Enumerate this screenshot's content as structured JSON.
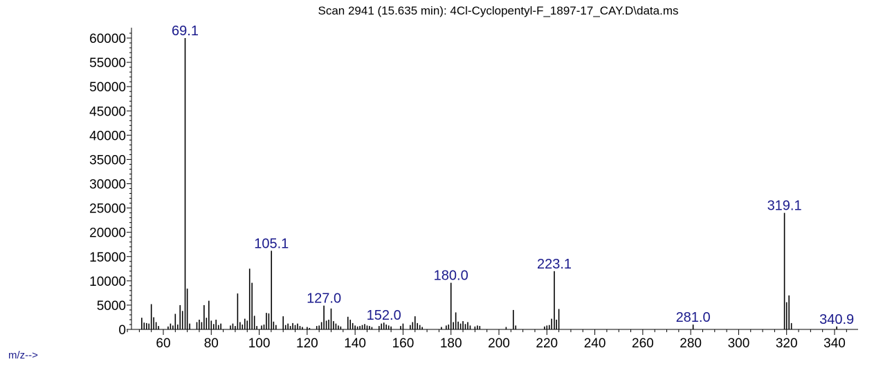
{
  "chart_data": {
    "type": "bar",
    "title": "Scan 2941 (15.635 min): 4Cl-Cyclopentyl-F_1897-17_CAY.D\\data.ms",
    "xlabel": "m/z-->",
    "ylabel": "",
    "xlim": [
      43,
      347
    ],
    "ylim": [
      0,
      62500
    ],
    "x_ticks": [
      60,
      80,
      100,
      120,
      140,
      160,
      180,
      200,
      220,
      240,
      260,
      280,
      300,
      320,
      340
    ],
    "y_ticks": [
      0,
      5000,
      10000,
      15000,
      20000,
      25000,
      30000,
      35000,
      40000,
      45000,
      50000,
      55000,
      60000
    ],
    "colors": {
      "bars": "#000000",
      "peak_labels": "#1a1a8c",
      "axes": "#000000"
    },
    "peaks": [
      {
        "mz": 51,
        "intensity": 2400
      },
      {
        "mz": 52,
        "intensity": 1400
      },
      {
        "mz": 53,
        "intensity": 1300
      },
      {
        "mz": 54,
        "intensity": 1200
      },
      {
        "mz": 55,
        "intensity": 5200
      },
      {
        "mz": 56,
        "intensity": 2500
      },
      {
        "mz": 57,
        "intensity": 1500
      },
      {
        "mz": 58,
        "intensity": 700
      },
      {
        "mz": 62,
        "intensity": 600
      },
      {
        "mz": 63,
        "intensity": 1200
      },
      {
        "mz": 64,
        "intensity": 800
      },
      {
        "mz": 65,
        "intensity": 3200
      },
      {
        "mz": 66,
        "intensity": 1000
      },
      {
        "mz": 67,
        "intensity": 5000
      },
      {
        "mz": 68,
        "intensity": 3800
      },
      {
        "mz": 69.1,
        "intensity": 60000
      },
      {
        "mz": 70,
        "intensity": 8400
      },
      {
        "mz": 71,
        "intensity": 1200
      },
      {
        "mz": 74,
        "intensity": 1500
      },
      {
        "mz": 75,
        "intensity": 2000
      },
      {
        "mz": 76,
        "intensity": 1500
      },
      {
        "mz": 77,
        "intensity": 5000
      },
      {
        "mz": 78,
        "intensity": 2400
      },
      {
        "mz": 79,
        "intensity": 5900
      },
      {
        "mz": 80,
        "intensity": 1800
      },
      {
        "mz": 81,
        "intensity": 1100
      },
      {
        "mz": 82,
        "intensity": 2000
      },
      {
        "mz": 83,
        "intensity": 900
      },
      {
        "mz": 84,
        "intensity": 1200
      },
      {
        "mz": 88,
        "intensity": 800
      },
      {
        "mz": 89,
        "intensity": 1200
      },
      {
        "mz": 90,
        "intensity": 700
      },
      {
        "mz": 91,
        "intensity": 7400
      },
      {
        "mz": 92,
        "intensity": 1500
      },
      {
        "mz": 93,
        "intensity": 1000
      },
      {
        "mz": 94,
        "intensity": 2200
      },
      {
        "mz": 95,
        "intensity": 1800
      },
      {
        "mz": 96,
        "intensity": 12500
      },
      {
        "mz": 97,
        "intensity": 9600
      },
      {
        "mz": 98,
        "intensity": 2800
      },
      {
        "mz": 99,
        "intensity": 700
      },
      {
        "mz": 101,
        "intensity": 800
      },
      {
        "mz": 102,
        "intensity": 1000
      },
      {
        "mz": 103,
        "intensity": 3400
      },
      {
        "mz": 104,
        "intensity": 3300
      },
      {
        "mz": 105.1,
        "intensity": 16200
      },
      {
        "mz": 106,
        "intensity": 1600
      },
      {
        "mz": 107,
        "intensity": 900
      },
      {
        "mz": 110,
        "intensity": 2700
      },
      {
        "mz": 111,
        "intensity": 900
      },
      {
        "mz": 112,
        "intensity": 1200
      },
      {
        "mz": 113,
        "intensity": 700
      },
      {
        "mz": 114,
        "intensity": 1300
      },
      {
        "mz": 115,
        "intensity": 900
      },
      {
        "mz": 116,
        "intensity": 1200
      },
      {
        "mz": 117,
        "intensity": 700
      },
      {
        "mz": 118,
        "intensity": 500
      },
      {
        "mz": 120,
        "intensity": 500
      },
      {
        "mz": 121,
        "intensity": 300
      },
      {
        "mz": 124,
        "intensity": 700
      },
      {
        "mz": 125,
        "intensity": 800
      },
      {
        "mz": 126,
        "intensity": 1500
      },
      {
        "mz": 127,
        "intensity": 4900
      },
      {
        "mz": 128,
        "intensity": 1800
      },
      {
        "mz": 129,
        "intensity": 2000
      },
      {
        "mz": 130,
        "intensity": 4300
      },
      {
        "mz": 131,
        "intensity": 1700
      },
      {
        "mz": 132,
        "intensity": 1200
      },
      {
        "mz": 133,
        "intensity": 800
      },
      {
        "mz": 134,
        "intensity": 600
      },
      {
        "mz": 137,
        "intensity": 2600
      },
      {
        "mz": 138,
        "intensity": 2000
      },
      {
        "mz": 139,
        "intensity": 1300
      },
      {
        "mz": 140,
        "intensity": 800
      },
      {
        "mz": 141,
        "intensity": 600
      },
      {
        "mz": 142,
        "intensity": 700
      },
      {
        "mz": 143,
        "intensity": 900
      },
      {
        "mz": 144,
        "intensity": 1100
      },
      {
        "mz": 145,
        "intensity": 800
      },
      {
        "mz": 146,
        "intensity": 700
      },
      {
        "mz": 147,
        "intensity": 500
      },
      {
        "mz": 150,
        "intensity": 700
      },
      {
        "mz": 151,
        "intensity": 1200
      },
      {
        "mz": 152.0,
        "intensity": 1400
      },
      {
        "mz": 153,
        "intensity": 1000
      },
      {
        "mz": 154,
        "intensity": 800
      },
      {
        "mz": 155,
        "intensity": 600
      },
      {
        "mz": 159,
        "intensity": 700
      },
      {
        "mz": 160,
        "intensity": 1200
      },
      {
        "mz": 163,
        "intensity": 900
      },
      {
        "mz": 164,
        "intensity": 1500
      },
      {
        "mz": 165,
        "intensity": 2700
      },
      {
        "mz": 166,
        "intensity": 1300
      },
      {
        "mz": 167,
        "intensity": 900
      },
      {
        "mz": 168,
        "intensity": 500
      },
      {
        "mz": 176,
        "intensity": 500
      },
      {
        "mz": 178,
        "intensity": 800
      },
      {
        "mz": 179,
        "intensity": 1000
      },
      {
        "mz": 180.0,
        "intensity": 9600
      },
      {
        "mz": 181,
        "intensity": 1500
      },
      {
        "mz": 182,
        "intensity": 3500
      },
      {
        "mz": 183,
        "intensity": 1600
      },
      {
        "mz": 184,
        "intensity": 1200
      },
      {
        "mz": 185,
        "intensity": 1700
      },
      {
        "mz": 186,
        "intensity": 1100
      },
      {
        "mz": 187,
        "intensity": 1500
      },
      {
        "mz": 188,
        "intensity": 800
      },
      {
        "mz": 190,
        "intensity": 600
      },
      {
        "mz": 191,
        "intensity": 800
      },
      {
        "mz": 192,
        "intensity": 700
      },
      {
        "mz": 203,
        "intensity": 500
      },
      {
        "mz": 206,
        "intensity": 4000
      },
      {
        "mz": 207,
        "intensity": 800
      },
      {
        "mz": 219,
        "intensity": 600
      },
      {
        "mz": 220,
        "intensity": 800
      },
      {
        "mz": 221,
        "intensity": 900
      },
      {
        "mz": 222,
        "intensity": 2200
      },
      {
        "mz": 223.1,
        "intensity": 12000
      },
      {
        "mz": 224,
        "intensity": 2000
      },
      {
        "mz": 225,
        "intensity": 4200
      },
      {
        "mz": 281.0,
        "intensity": 1000
      },
      {
        "mz": 319.1,
        "intensity": 24000
      },
      {
        "mz": 320,
        "intensity": 5600
      },
      {
        "mz": 321,
        "intensity": 7000
      },
      {
        "mz": 322,
        "intensity": 1300
      },
      {
        "mz": 340.9,
        "intensity": 600
      }
    ],
    "labeled_peaks": [
      {
        "label": "69.1",
        "mz": 69.1,
        "intensity": 60000
      },
      {
        "label": "105.1",
        "mz": 105.1,
        "intensity": 16200
      },
      {
        "label": "127.0",
        "mz": 127.0,
        "intensity": 4900
      },
      {
        "label": "152.0",
        "mz": 152.0,
        "intensity": 1400
      },
      {
        "label": "180.0",
        "mz": 180.0,
        "intensity": 9600
      },
      {
        "label": "223.1",
        "mz": 223.1,
        "intensity": 12000
      },
      {
        "label": "281.0",
        "mz": 281.0,
        "intensity": 1000
      },
      {
        "label": "319.1",
        "mz": 319.1,
        "intensity": 24000
      },
      {
        "label": "340.9",
        "mz": 340.9,
        "intensity": 600
      }
    ]
  }
}
